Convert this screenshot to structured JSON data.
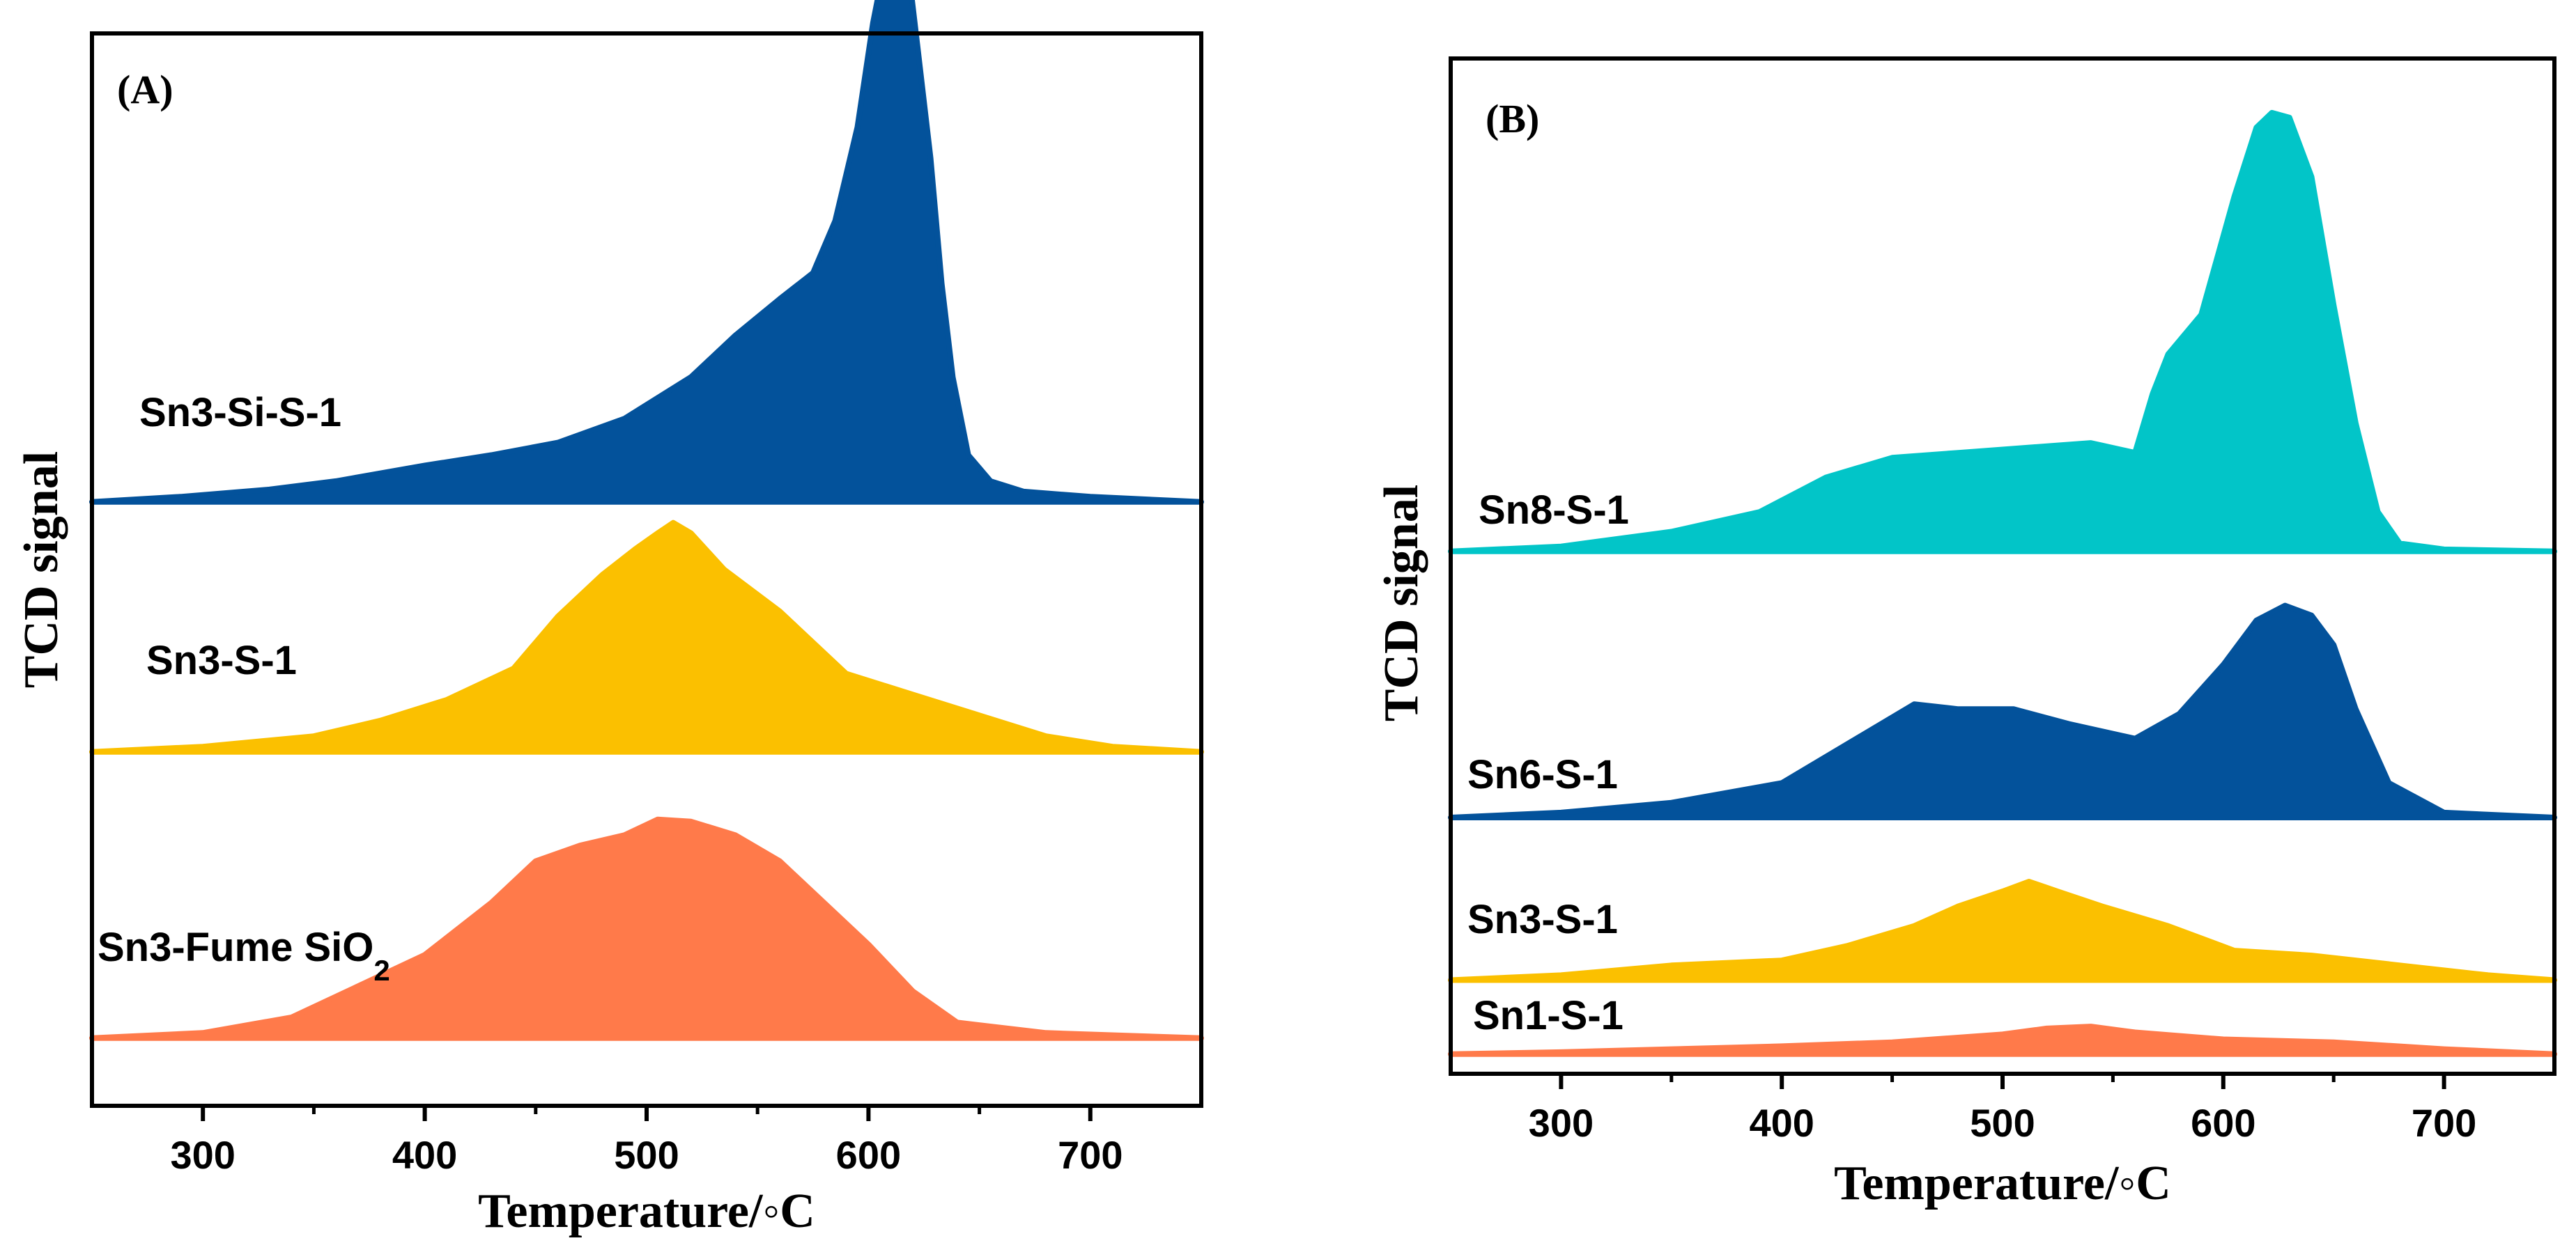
{
  "chart_data": [
    {
      "panel_label": "(A)",
      "type": "area",
      "xlabel": "Temperature/◦C",
      "ylabel": "TCD signal",
      "xlim": [
        250,
        750
      ],
      "xticks": [
        300,
        400,
        500,
        600,
        700
      ],
      "ylim": [
        0,
        10.3
      ],
      "series": [
        {
          "name": "Sn3-Si-S-1",
          "label": "Sn3-Si-S-1",
          "color": "#03529b",
          "baseline": 5.8,
          "x": [
            250,
            290,
            330,
            360,
            400,
            430,
            460,
            490,
            520,
            540,
            560,
            575,
            585,
            595,
            602,
            608,
            613,
            617,
            622,
            628,
            633,
            638,
            645,
            655,
            670,
            700,
            750
          ],
          "y": [
            0.0,
            0.05,
            0.12,
            0.2,
            0.35,
            0.45,
            0.57,
            0.8,
            1.2,
            1.6,
            1.95,
            2.2,
            2.7,
            3.6,
            4.6,
            5.25,
            5.4,
            5.3,
            4.4,
            3.3,
            2.1,
            1.2,
            0.45,
            0.2,
            0.1,
            0.05,
            0.0
          ]
        },
        {
          "name": "Sn3-S-1",
          "label": "Sn3-S-1",
          "color": "#fbc000",
          "baseline": 3.4,
          "x": [
            250,
            300,
            350,
            380,
            410,
            440,
            460,
            480,
            495,
            505,
            512,
            520,
            535,
            560,
            590,
            620,
            650,
            680,
            710,
            750
          ],
          "y": [
            0.0,
            0.05,
            0.15,
            0.3,
            0.5,
            0.8,
            1.3,
            1.7,
            1.95,
            2.1,
            2.2,
            2.1,
            1.75,
            1.35,
            0.75,
            0.55,
            0.35,
            0.15,
            0.05,
            0.0
          ]
        },
        {
          "name": "Sn3-Fume SiO2",
          "label": "Sn3-Fume SiO",
          "label_sub": "2",
          "color": "#ff7a4a",
          "baseline": 0.65,
          "x": [
            250,
            300,
            340,
            370,
            400,
            430,
            450,
            470,
            490,
            505,
            520,
            540,
            560,
            580,
            600,
            620,
            640,
            680,
            750
          ],
          "y": [
            0.0,
            0.05,
            0.2,
            0.5,
            0.8,
            1.3,
            1.7,
            1.85,
            1.95,
            2.1,
            2.08,
            1.95,
            1.7,
            1.3,
            0.9,
            0.45,
            0.15,
            0.05,
            0.0
          ]
        }
      ]
    },
    {
      "panel_label": "(B)",
      "type": "area",
      "xlabel": "Temperature/◦C",
      "ylabel": "TCD signal",
      "xlim": [
        250,
        750
      ],
      "xticks": [
        300,
        400,
        500,
        600,
        700
      ],
      "ylim": [
        0,
        10.3
      ],
      "series": [
        {
          "name": "Sn8-S-1",
          "label": "Sn8-S-1",
          "color": "#02c5c8",
          "baseline": 5.3,
          "x": [
            250,
            300,
            350,
            390,
            420,
            450,
            480,
            510,
            540,
            560,
            568,
            575,
            590,
            605,
            615,
            622,
            630,
            640,
            650,
            660,
            670,
            680,
            700,
            750
          ],
          "y": [
            0.0,
            0.05,
            0.2,
            0.4,
            0.75,
            0.95,
            1.0,
            1.05,
            1.1,
            1.0,
            1.6,
            2.0,
            2.4,
            3.6,
            4.3,
            4.45,
            4.4,
            3.8,
            2.5,
            1.3,
            0.4,
            0.08,
            0.02,
            0.0
          ]
        },
        {
          "name": "Sn6-S-1",
          "label": "Sn6-S-1",
          "color": "#03529b",
          "baseline": 2.6,
          "x": [
            250,
            300,
            350,
            400,
            430,
            460,
            480,
            505,
            530,
            560,
            580,
            600,
            615,
            628,
            640,
            650,
            660,
            675,
            700,
            750
          ],
          "y": [
            0.0,
            0.05,
            0.15,
            0.35,
            0.75,
            1.15,
            1.1,
            1.1,
            0.95,
            0.8,
            1.05,
            1.55,
            2.0,
            2.15,
            2.05,
            1.75,
            1.1,
            0.35,
            0.05,
            0.0
          ]
        },
        {
          "name": "Sn3-S-1",
          "label": "Sn3-S-1",
          "color": "#fbc000",
          "baseline": 0.95,
          "x": [
            250,
            300,
            350,
            400,
            430,
            460,
            480,
            500,
            512,
            525,
            545,
            575,
            605,
            640,
            680,
            720,
            750
          ],
          "y": [
            0.0,
            0.05,
            0.15,
            0.2,
            0.35,
            0.55,
            0.75,
            0.9,
            1.0,
            0.9,
            0.75,
            0.55,
            0.3,
            0.25,
            0.15,
            0.05,
            0.0
          ]
        },
        {
          "name": "Sn1-S-1",
          "label": "Sn1-S-1",
          "color": "#ff7a4a",
          "baseline": 0.2,
          "x": [
            250,
            300,
            350,
            400,
            450,
            500,
            520,
            540,
            560,
            600,
            650,
            700,
            750
          ],
          "y": [
            0.0,
            0.02,
            0.05,
            0.08,
            0.12,
            0.2,
            0.26,
            0.28,
            0.22,
            0.15,
            0.12,
            0.05,
            0.0
          ]
        }
      ]
    }
  ]
}
